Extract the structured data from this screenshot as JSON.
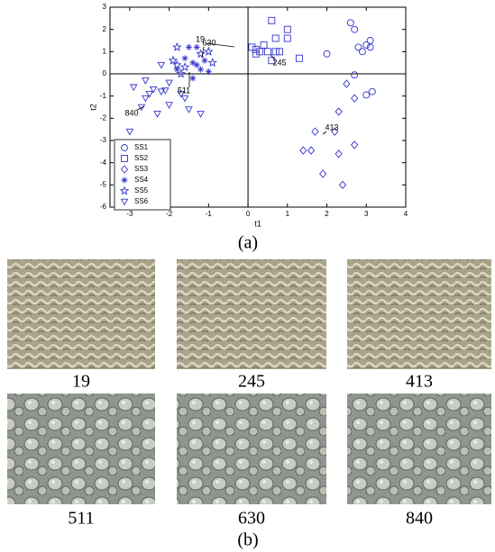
{
  "chart_data": {
    "type": "scatter",
    "xlabel": "t1",
    "ylabel": "t2",
    "xlim": [
      -3.5,
      4
    ],
    "ylim": [
      -6,
      3
    ],
    "xticks": [
      -3,
      -2,
      -1,
      0,
      1,
      2,
      3,
      4
    ],
    "yticks": [
      -6,
      -5,
      -4,
      -3,
      -2,
      -1,
      0,
      1,
      2,
      3
    ],
    "color": "#3333cc",
    "series": [
      {
        "name": "SS1",
        "marker": "circle",
        "x": [
          2.6,
          2.7,
          2.8,
          2.9,
          3.0,
          3.1,
          3.1,
          2.0,
          2.7,
          3.0,
          3.15
        ],
        "values": [
          2.3,
          2.0,
          1.2,
          1.0,
          1.3,
          1.5,
          1.2,
          0.9,
          -0.05,
          -0.95,
          -0.8
        ]
      },
      {
        "name": "SS2",
        "marker": "square",
        "x": [
          0.1,
          0.2,
          0.4,
          0.5,
          0.6,
          0.7,
          0.7,
          0.6,
          1.0,
          1.0,
          1.3,
          0.2,
          0.3,
          0.8
        ],
        "values": [
          1.2,
          1.1,
          1.3,
          1.0,
          2.4,
          1.6,
          1.0,
          0.6,
          2.0,
          1.6,
          0.7,
          0.9,
          1.0,
          1.0
        ]
      },
      {
        "name": "SS3",
        "marker": "diamond",
        "x": [
          2.5,
          2.7,
          2.3,
          2.2,
          1.7,
          2.7,
          1.4,
          1.6,
          2.3,
          1.9,
          2.4
        ],
        "values": [
          -0.45,
          -1.1,
          -1.7,
          -2.6,
          -2.6,
          -3.2,
          -3.45,
          -3.45,
          -3.6,
          -4.5,
          -5.0
        ]
      },
      {
        "name": "SS4",
        "marker": "asterisk",
        "x": [
          -1.5,
          -1.3,
          -1.6,
          -1.4,
          -1.3,
          -1.1,
          -1.2,
          -1.0,
          -1.8,
          -1.4
        ],
        "values": [
          1.2,
          1.2,
          0.7,
          0.5,
          0.4,
          0.6,
          0.2,
          0.1,
          0.2,
          -0.2
        ]
      },
      {
        "name": "SS5",
        "marker": "pentagram",
        "x": [
          -1.8,
          -1.0,
          -1.2,
          -1.9,
          -1.8,
          -1.6,
          -0.9,
          -1.7
        ],
        "values": [
          1.2,
          1.0,
          0.9,
          0.6,
          0.4,
          0.3,
          0.5,
          0.0
        ]
      },
      {
        "name": "SS6",
        "marker": "triangle-down",
        "x": [
          -2.2,
          -2.0,
          -2.6,
          -2.9,
          -2.4,
          -2.5,
          -2.6,
          -2.2,
          -2.1,
          -2.7,
          -2.0,
          -1.6,
          -2.3,
          -1.5,
          -1.2,
          -3.0,
          -1.7
        ],
        "values": [
          0.4,
          -0.4,
          -0.3,
          -0.6,
          -0.7,
          -0.9,
          -1.1,
          -0.8,
          -0.75,
          -1.5,
          -1.4,
          -1.1,
          -1.8,
          -1.6,
          -1.8,
          -2.6,
          -0.9
        ]
      }
    ],
    "annotations": [
      "19",
      "245",
      "413",
      "511",
      "630",
      "840"
    ]
  },
  "captions": {
    "a": "(a)",
    "b": "(b)",
    "images": [
      "19",
      "245",
      "413",
      "511",
      "630",
      "840"
    ]
  }
}
